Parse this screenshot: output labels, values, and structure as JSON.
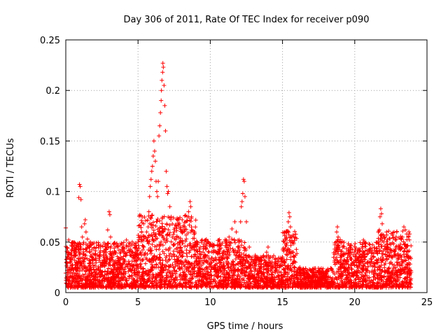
{
  "chart_data": {
    "type": "scatter",
    "title": "Day 306 of 2011, Rate Of TEC Index for receiver p090",
    "xlabel": "GPS time / hours",
    "ylabel": "ROTI / TECUs",
    "xlim": [
      0,
      25
    ],
    "ylim": [
      0,
      0.25
    ],
    "x_ticks": [
      0,
      5,
      10,
      15,
      20,
      25
    ],
    "y_ticks": [
      0,
      0.05,
      0.1,
      0.15,
      0.2,
      0.25
    ],
    "x_tick_labels": [
      "0",
      "5",
      "10",
      "15",
      "20",
      "25"
    ],
    "y_tick_labels": [
      "0",
      "0.05",
      "0.1",
      "0.15",
      "0.2",
      "0.25"
    ],
    "grid": true,
    "marker": "+",
    "series_color": "#ff0000",
    "series": [
      {
        "name": "ROTI",
        "points": [
          [
            0.0,
            0.064
          ],
          [
            0.05,
            0.03
          ],
          [
            0.1,
            0.022
          ],
          [
            0.15,
            0.018
          ],
          [
            0.2,
            0.052
          ],
          [
            0.25,
            0.015
          ],
          [
            0.3,
            0.025
          ],
          [
            0.4,
            0.012
          ],
          [
            0.5,
            0.02
          ],
          [
            0.6,
            0.018
          ],
          [
            0.7,
            0.03
          ],
          [
            0.8,
            0.025
          ],
          [
            0.9,
            0.094
          ],
          [
            0.95,
            0.107
          ],
          [
            1.0,
            0.105
          ],
          [
            1.05,
            0.092
          ],
          [
            1.1,
            0.065
          ],
          [
            1.15,
            0.055
          ],
          [
            1.2,
            0.048
          ],
          [
            1.3,
            0.068
          ],
          [
            1.35,
            0.072
          ],
          [
            1.4,
            0.06
          ],
          [
            1.5,
            0.053
          ],
          [
            1.6,
            0.045
          ],
          [
            1.7,
            0.05
          ],
          [
            1.8,
            0.035
          ],
          [
            1.9,
            0.025
          ],
          [
            2.0,
            0.02
          ],
          [
            2.2,
            0.018
          ],
          [
            2.4,
            0.025
          ],
          [
            2.6,
            0.03
          ],
          [
            2.8,
            0.04
          ],
          [
            2.9,
            0.062
          ],
          [
            3.0,
            0.08
          ],
          [
            3.05,
            0.077
          ],
          [
            3.1,
            0.055
          ],
          [
            3.2,
            0.035
          ],
          [
            3.4,
            0.025
          ],
          [
            3.6,
            0.03
          ],
          [
            3.8,
            0.04
          ],
          [
            4.0,
            0.045
          ],
          [
            4.2,
            0.052
          ],
          [
            4.4,
            0.04
          ],
          [
            4.6,
            0.05
          ],
          [
            4.8,
            0.045
          ],
          [
            5.0,
            0.05
          ],
          [
            5.2,
            0.04
          ],
          [
            5.4,
            0.045
          ],
          [
            5.5,
            0.055
          ],
          [
            5.6,
            0.06
          ],
          [
            5.7,
            0.065
          ],
          [
            5.75,
            0.08
          ],
          [
            5.8,
            0.095
          ],
          [
            5.85,
            0.105
          ],
          [
            5.9,
            0.112
          ],
          [
            5.95,
            0.12
          ],
          [
            6.0,
            0.125
          ],
          [
            6.05,
            0.135
          ],
          [
            6.1,
            0.15
          ],
          [
            6.15,
            0.14
          ],
          [
            6.2,
            0.13
          ],
          [
            6.25,
            0.11
          ],
          [
            6.3,
            0.1
          ],
          [
            6.35,
            0.095
          ],
          [
            6.4,
            0.11
          ],
          [
            6.45,
            0.155
          ],
          [
            6.5,
            0.165
          ],
          [
            6.55,
            0.178
          ],
          [
            6.6,
            0.19
          ],
          [
            6.62,
            0.2
          ],
          [
            6.65,
            0.21
          ],
          [
            6.7,
            0.218
          ],
          [
            6.72,
            0.227
          ],
          [
            6.75,
            0.223
          ],
          [
            6.8,
            0.205
          ],
          [
            6.85,
            0.185
          ],
          [
            6.9,
            0.16
          ],
          [
            6.95,
            0.12
          ],
          [
            7.0,
            0.105
          ],
          [
            7.05,
            0.098
          ],
          [
            7.1,
            0.1
          ],
          [
            7.2,
            0.085
          ],
          [
            7.3,
            0.075
          ],
          [
            7.5,
            0.06
          ],
          [
            7.7,
            0.055
          ],
          [
            7.9,
            0.05
          ],
          [
            8.1,
            0.06
          ],
          [
            8.3,
            0.07
          ],
          [
            8.4,
            0.075
          ],
          [
            8.5,
            0.08
          ],
          [
            8.6,
            0.09
          ],
          [
            8.65,
            0.085
          ],
          [
            8.7,
            0.075
          ],
          [
            8.9,
            0.06
          ],
          [
            9.1,
            0.05
          ],
          [
            9.3,
            0.045
          ],
          [
            9.5,
            0.04
          ],
          [
            9.7,
            0.05
          ],
          [
            9.9,
            0.04
          ],
          [
            10.1,
            0.03
          ],
          [
            10.3,
            0.025
          ],
          [
            10.5,
            0.02
          ],
          [
            10.7,
            0.03
          ],
          [
            10.9,
            0.04
          ],
          [
            11.1,
            0.045
          ],
          [
            11.3,
            0.055
          ],
          [
            11.5,
            0.063
          ],
          [
            11.7,
            0.07
          ],
          [
            11.8,
            0.06
          ],
          [
            12.0,
            0.05
          ],
          [
            12.1,
            0.07
          ],
          [
            12.15,
            0.085
          ],
          [
            12.2,
            0.09
          ],
          [
            12.25,
            0.098
          ],
          [
            12.3,
            0.112
          ],
          [
            12.35,
            0.11
          ],
          [
            12.4,
            0.095
          ],
          [
            12.5,
            0.07
          ],
          [
            12.7,
            0.045
          ],
          [
            12.9,
            0.035
          ],
          [
            13.1,
            0.03
          ],
          [
            13.3,
            0.035
          ],
          [
            13.5,
            0.025
          ],
          [
            13.7,
            0.02
          ],
          [
            13.9,
            0.04
          ],
          [
            14.0,
            0.045
          ],
          [
            14.1,
            0.035
          ],
          [
            14.3,
            0.02
          ],
          [
            14.6,
            0.015
          ],
          [
            14.9,
            0.02
          ],
          [
            15.1,
            0.03
          ],
          [
            15.2,
            0.045
          ],
          [
            15.3,
            0.06
          ],
          [
            15.4,
            0.07
          ],
          [
            15.45,
            0.079
          ],
          [
            15.5,
            0.075
          ],
          [
            15.55,
            0.065
          ],
          [
            15.6,
            0.055
          ],
          [
            15.7,
            0.04
          ],
          [
            15.9,
            0.03
          ],
          [
            16.2,
            0.025
          ],
          [
            16.5,
            0.02
          ],
          [
            16.8,
            0.015
          ],
          [
            17.1,
            0.012
          ],
          [
            17.4,
            0.01
          ],
          [
            17.7,
            0.012
          ],
          [
            18.0,
            0.01
          ],
          [
            18.3,
            0.015
          ],
          [
            18.5,
            0.02
          ],
          [
            18.6,
            0.03
          ],
          [
            18.7,
            0.05
          ],
          [
            18.75,
            0.06
          ],
          [
            18.8,
            0.065
          ],
          [
            18.85,
            0.055
          ],
          [
            18.9,
            0.045
          ],
          [
            19.0,
            0.035
          ],
          [
            19.2,
            0.02
          ],
          [
            19.5,
            0.015
          ],
          [
            19.8,
            0.02
          ],
          [
            20.1,
            0.03
          ],
          [
            20.3,
            0.035
          ],
          [
            20.5,
            0.03
          ],
          [
            20.6,
            0.052
          ],
          [
            20.65,
            0.05
          ],
          [
            20.7,
            0.035
          ],
          [
            21.0,
            0.03
          ],
          [
            21.3,
            0.035
          ],
          [
            21.5,
            0.04
          ],
          [
            21.6,
            0.05
          ],
          [
            21.7,
            0.062
          ],
          [
            21.75,
            0.075
          ],
          [
            21.8,
            0.083
          ],
          [
            21.85,
            0.078
          ],
          [
            21.9,
            0.068
          ],
          [
            22.0,
            0.05
          ],
          [
            22.1,
            0.055
          ],
          [
            22.2,
            0.06
          ],
          [
            22.3,
            0.045
          ],
          [
            22.5,
            0.03
          ],
          [
            22.7,
            0.025
          ],
          [
            22.9,
            0.03
          ],
          [
            23.1,
            0.045
          ],
          [
            23.3,
            0.055
          ],
          [
            23.4,
            0.065
          ],
          [
            23.5,
            0.062
          ],
          [
            23.6,
            0.058
          ],
          [
            23.7,
            0.055
          ],
          [
            23.8,
            0.058
          ],
          [
            23.85,
            0.035
          ],
          [
            23.9,
            0.02
          ]
        ]
      }
    ]
  }
}
